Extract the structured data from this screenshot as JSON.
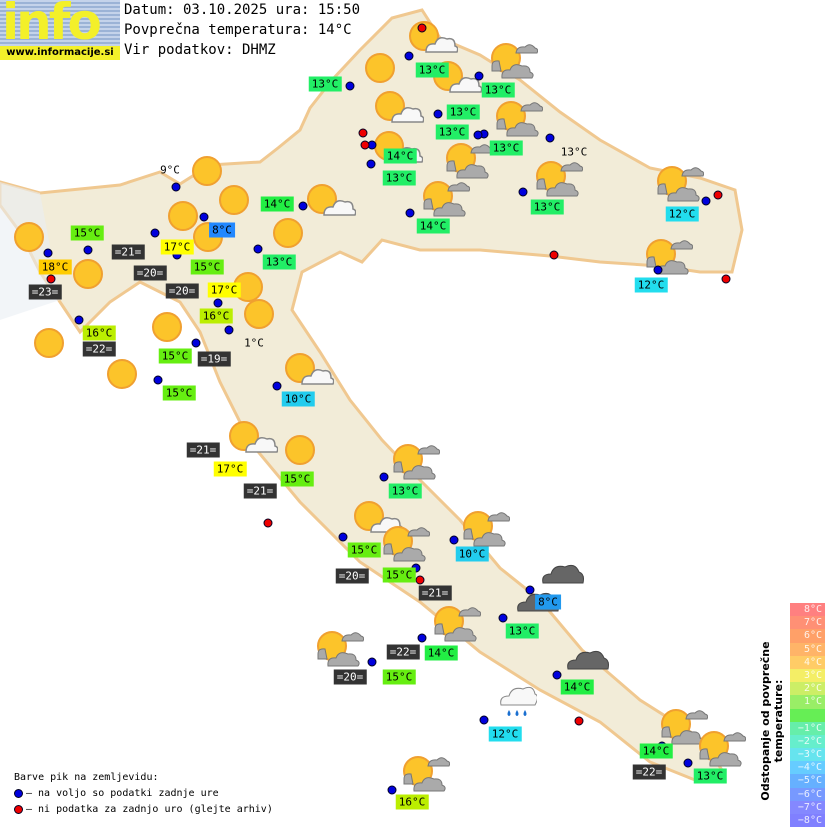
{
  "logo": {
    "text": "info",
    "url": "www.informacije.si"
  },
  "header": {
    "date_line": "Datum: 03.10.2025 ura: 15:50",
    "avg_temp_line": "Povprečna temperatura: 14°C",
    "source_line": "Vir podatkov: DHMZ"
  },
  "colors": {
    "blue_dot": "#0000dd",
    "red_dot": "#ee0000",
    "sea_box": "#333333",
    "land": "#f2ecd8",
    "border": "#f0c890"
  },
  "temperature_labels": [
    {
      "text": "13°C",
      "color": "#22ee66"
    },
    {
      "text": "13°C",
      "color": "#22ee66"
    },
    {
      "text": "13°C",
      "color": "#22ee66"
    },
    {
      "text": "13°C",
      "color": "#22ee66"
    },
    {
      "text": "13°C",
      "color": "#22ee66"
    },
    {
      "text": "13°C",
      "color": "#22ee66"
    },
    {
      "text": "13°C",
      "color": ""
    },
    {
      "text": "14°C",
      "color": "#22ee66"
    },
    {
      "text": "13°C",
      "color": "#22ee66"
    },
    {
      "text": "14°C",
      "color": "#22ee66"
    },
    {
      "text": "13°C",
      "color": "#22ee66"
    },
    {
      "text": "12°C",
      "color": "#22ddee"
    },
    {
      "text": "14°C",
      "color": "#22ee44"
    },
    {
      "text": "8°C",
      "color": "#2288ff"
    },
    {
      "text": "15°C",
      "color": "#66ee11"
    },
    {
      "text": "17°C",
      "color": "#ffff00"
    },
    {
      "text": "15°C",
      "color": "#66ee11"
    },
    {
      "text": "17°C",
      "color": "#ffff00"
    },
    {
      "text": "13°C",
      "color": "#22ee66"
    },
    {
      "text": "18°C",
      "color": "#ffcc00"
    },
    {
      "text": "12°C",
      "color": "#22ddee"
    },
    {
      "text": "9°C",
      "color": ""
    },
    {
      "text": "16°C",
      "color": "#bbee00"
    },
    {
      "text": "16°C",
      "color": "#bbee00"
    },
    {
      "text": "1°C",
      "color": ""
    },
    {
      "text": "15°C",
      "color": "#66ee11"
    },
    {
      "text": "15°C",
      "color": "#66ee11"
    },
    {
      "text": "10°C",
      "color": "#22ccee"
    },
    {
      "text": "17°C",
      "color": "#ffff00"
    },
    {
      "text": "15°C",
      "color": "#66ee11"
    },
    {
      "text": "13°C",
      "color": "#22ee66"
    },
    {
      "text": "15°C",
      "color": "#66ee11"
    },
    {
      "text": "10°C",
      "color": "#22ccee"
    },
    {
      "text": "15°C",
      "color": "#66ee11"
    },
    {
      "text": "8°C",
      "color": "#2299ee"
    },
    {
      "text": "13°C",
      "color": "#22ee66"
    },
    {
      "text": "14°C",
      "color": "#22ee44"
    },
    {
      "text": "15°C",
      "color": "#66ee11"
    },
    {
      "text": "14°C",
      "color": "#22ee44"
    },
    {
      "text": "12°C",
      "color": "#22ddee"
    },
    {
      "text": "14°C",
      "color": "#22ee44"
    },
    {
      "text": "13°C",
      "color": "#22ee66"
    },
    {
      "text": "16°C",
      "color": "#bbee00"
    }
  ],
  "sea_temperatures": [
    "=21=",
    "=20=",
    "=20=",
    "=23=",
    "=22=",
    "=19=",
    "=21=",
    "=21=",
    "=20=",
    "=21=",
    "=22=",
    "=20=",
    "=22="
  ],
  "weather_icons": [
    "sun",
    "sun",
    "sun",
    "sun",
    "sun",
    "sun",
    "sun",
    "sun",
    "sun",
    "sun",
    "sun",
    "sun",
    "sun",
    "sun",
    "sun-cloud",
    "sun-cloud",
    "sun-cloud",
    "sun-cloud",
    "sun-cloud",
    "sun-cloud",
    "sun-cloud",
    "sun-cloud",
    "sun-clouds",
    "sun-clouds",
    "sun-clouds",
    "sun-clouds",
    "sun-clouds",
    "sun-clouds",
    "sun-clouds",
    "sun-clouds",
    "sun-clouds",
    "sun-clouds",
    "sun-clouds",
    "sun-clouds",
    "sun-clouds",
    "sun-clouds",
    "sun-clouds",
    "cloudy",
    "cloudy",
    "cloudy",
    "rain"
  ],
  "legend": {
    "title": "Barve pik na zemljevidu:",
    "blue": "– na voljo so podatki zadnje ure",
    "red": "– ni podatka za zadnjo uro (glejte arhiv)"
  },
  "scale": {
    "title": "Odstopanje od povprečne temperature:",
    "steps": [
      {
        "label": "8°C",
        "color": "#ff8080"
      },
      {
        "label": "7°C",
        "color": "#ff9075"
      },
      {
        "label": "6°C",
        "color": "#ffa068"
      },
      {
        "label": "5°C",
        "color": "#ffb468"
      },
      {
        "label": "4°C",
        "color": "#ffcc66"
      },
      {
        "label": "3°C",
        "color": "#f4ee66"
      },
      {
        "label": "2°C",
        "color": "#ccee66"
      },
      {
        "label": "1°C",
        "color": "#99ee66"
      },
      {
        "label": "",
        "color": "#66ee55"
      },
      {
        "label": "−1°C",
        "color": "#66eeaa"
      },
      {
        "label": "−2°C",
        "color": "#66eecc"
      },
      {
        "label": "−3°C",
        "color": "#66e4ee"
      },
      {
        "label": "−4°C",
        "color": "#66ccff"
      },
      {
        "label": "−5°C",
        "color": "#66b0ff"
      },
      {
        "label": "−6°C",
        "color": "#7799ff"
      },
      {
        "label": "−7°C",
        "color": "#8488ff"
      },
      {
        "label": "−8°C",
        "color": "#8080ff"
      }
    ]
  }
}
